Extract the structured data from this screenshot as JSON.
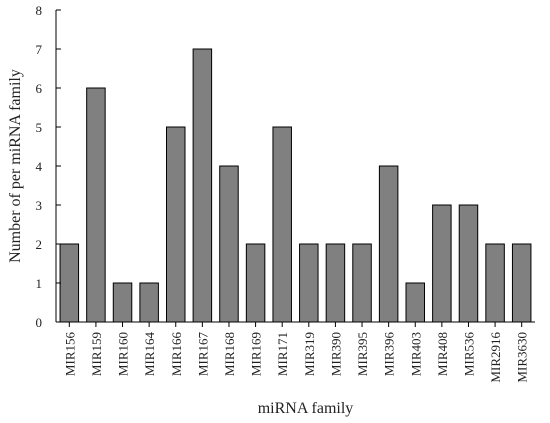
{
  "chart_data": {
    "type": "bar",
    "categories": [
      "MIR156",
      "MIR159",
      "MIR160",
      "MIR164",
      "MIR166",
      "MIR167",
      "MIR168",
      "MIR169",
      "MIR171",
      "MIR319",
      "MIR390",
      "MIR395",
      "MIR396",
      "MIR403",
      "MIR408",
      "MIR536",
      "MIR2916",
      "MIR3630"
    ],
    "values": [
      2,
      6,
      1,
      1,
      5,
      7,
      4,
      2,
      5,
      2,
      2,
      2,
      4,
      1,
      3,
      3,
      2,
      2
    ],
    "xlabel": "miRNA family",
    "ylabel": "Number of per miRNA family",
    "ylim": [
      0,
      8
    ],
    "yticks": [
      0,
      1,
      2,
      3,
      4,
      5,
      6,
      7,
      8
    ],
    "grid": false,
    "bar_color": "#808080",
    "bar_edge_color": "#000000"
  }
}
